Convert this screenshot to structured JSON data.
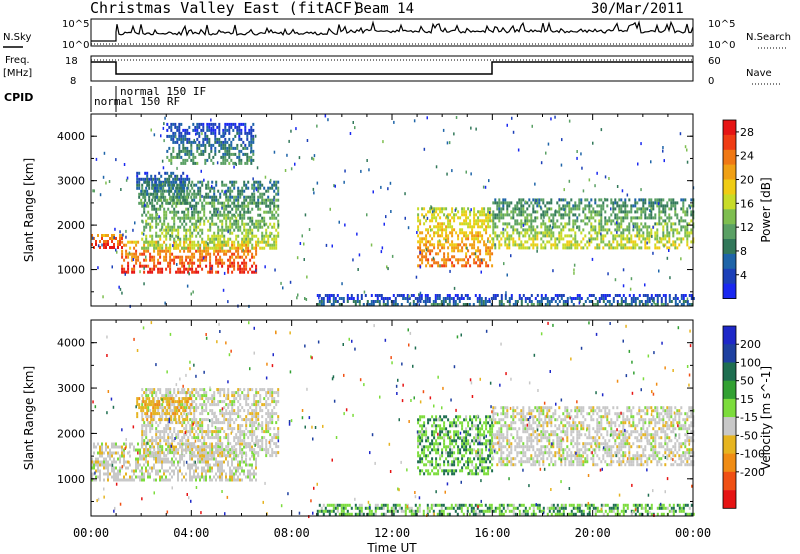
{
  "header": {
    "site": "Christmas Valley East (fitACF)",
    "beam": "Beam 14",
    "date": "30/Mar/2011"
  },
  "params": {
    "nsky_label": "N.Sky",
    "nsearch_label": "N.Search",
    "nsky_top": "10^5",
    "nsky_bottom": "10^0",
    "nsearch_top": "10^5",
    "nsearch_bottom": "10^0",
    "freq_label_1": "Freq.",
    "freq_label_2": "[MHz]",
    "freq_top": "18",
    "freq_bottom": "8",
    "nave_label": "Nave",
    "nave_top": "60",
    "nave_bottom": "0",
    "cpid_label": "CPID",
    "cpid_if": "normal 150 IF",
    "cpid_rf": "normal 150 RF"
  },
  "chart_data": [
    {
      "type": "heatmap",
      "title": "",
      "ylabel": "Slant Range [km]",
      "xlabel": "",
      "yticks": [
        "1000",
        "2000",
        "3000",
        "4000"
      ],
      "ylim": [
        180,
        4500
      ],
      "colorbar": {
        "label": "Power [dB]",
        "ticks": [
          "4",
          "8",
          "12",
          "16",
          "20",
          "24",
          "28"
        ],
        "range": [
          0,
          30
        ],
        "colors": [
          "#1a28f0",
          "#1c40b8",
          "#1e64a8",
          "#32785a",
          "#5aa064",
          "#7ebe50",
          "#c8dc28",
          "#f0cc14",
          "#f0a014",
          "#f07814",
          "#f03c14",
          "#e61414"
        ]
      },
      "bands": [
        {
          "x0": 0.0,
          "x1": 1.2,
          "y0": 1500,
          "y1": 1800,
          "level": 27
        },
        {
          "x0": 1.2,
          "x1": 6.6,
          "y0": 950,
          "y1": 1650,
          "level": 26
        },
        {
          "x0": 2.0,
          "x1": 7.5,
          "y0": 1500,
          "y1": 3000,
          "level": 14
        },
        {
          "x0": 1.8,
          "x1": 4.0,
          "y0": 2500,
          "y1": 3200,
          "level": 10
        },
        {
          "x0": 3.0,
          "x1": 6.5,
          "y0": 3400,
          "y1": 4300,
          "level": 9
        },
        {
          "x0": 13.0,
          "x1": 16.0,
          "y0": 1100,
          "y1": 2400,
          "level": 22
        },
        {
          "x0": 16.0,
          "x1": 24.0,
          "y0": 1500,
          "y1": 2600,
          "level": 15
        },
        {
          "x0": 9.0,
          "x1": 24.0,
          "y0": 200,
          "y1": 450,
          "level": 8
        }
      ]
    },
    {
      "type": "heatmap",
      "title": "",
      "ylabel": "Slant Range [km]",
      "xlabel": "Time UT",
      "xticks": [
        "00:00",
        "04:00",
        "08:00",
        "12:00",
        "16:00",
        "20:00",
        "00:00"
      ],
      "yticks": [
        "1000",
        "2000",
        "3000",
        "4000"
      ],
      "ylim": [
        180,
        4500
      ],
      "colorbar": {
        "label": "Velocity [m s^-1]",
        "ticks": [
          "200",
          "100",
          "50",
          "15",
          "-15",
          "-50",
          "-100",
          "-200"
        ],
        "colors": [
          "#1e28c8",
          "#1e40a0",
          "#1e6e50",
          "#32a032",
          "#7cdc3c",
          "#c8c8c8",
          "#e6b420",
          "#f08c14",
          "#f05014",
          "#e61414"
        ]
      },
      "bands": [
        {
          "x0": 0.0,
          "x1": 6.6,
          "y0": 950,
          "y1": 1800,
          "level": 0
        },
        {
          "x0": 2.0,
          "x1": 7.5,
          "y0": 1500,
          "y1": 3000,
          "level": 0
        },
        {
          "x0": 1.8,
          "x1": 4.0,
          "y0": 2300,
          "y1": 2800,
          "level": -40
        },
        {
          "x0": 13.0,
          "x1": 16.0,
          "y0": 1100,
          "y1": 2400,
          "level": 30
        },
        {
          "x0": 16.0,
          "x1": 24.0,
          "y0": 1300,
          "y1": 2600,
          "level": 0
        },
        {
          "x0": 9.0,
          "x1": 24.0,
          "y0": 200,
          "y1": 450,
          "level": 30
        }
      ]
    }
  ]
}
